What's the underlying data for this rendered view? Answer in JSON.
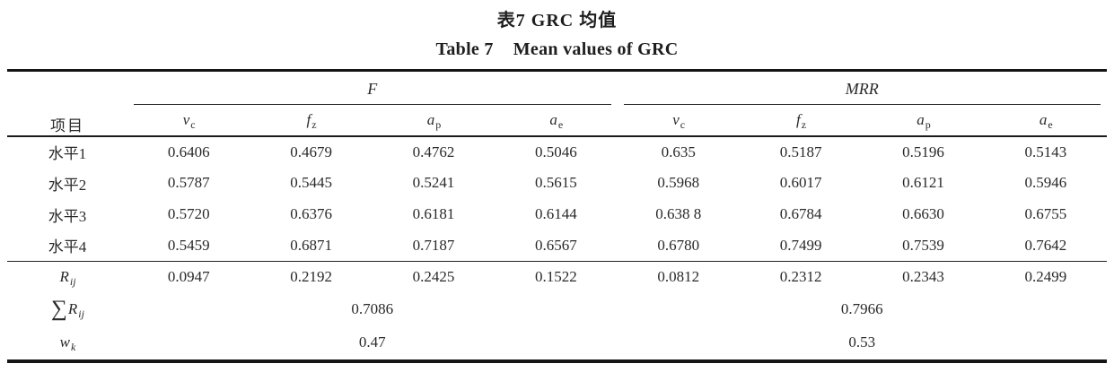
{
  "caption": {
    "zh": "表7 GRC 均值",
    "en_label": "Table 7",
    "en_text": "Mean values of GRC"
  },
  "table": {
    "item_header": "项目",
    "groups": [
      {
        "name": "F",
        "subcols": [
          {
            "base": "v",
            "sub": "c"
          },
          {
            "base": "f",
            "sub": "z"
          },
          {
            "base": "a",
            "sub": "p"
          },
          {
            "base": "a",
            "sub": "e"
          }
        ]
      },
      {
        "name": "MRR",
        "subcols": [
          {
            "base": "v",
            "sub": "c"
          },
          {
            "base": "f",
            "sub": "z"
          },
          {
            "base": "a",
            "sub": "p"
          },
          {
            "base": "a",
            "sub": "e"
          }
        ]
      }
    ],
    "level_rows": [
      {
        "label": "水平1",
        "F": [
          "0.6406",
          "0.4679",
          "0.4762",
          "0.5046"
        ],
        "MRR": [
          "0.635",
          "0.5187",
          "0.5196",
          "0.5143"
        ]
      },
      {
        "label": "水平2",
        "F": [
          "0.5787",
          "0.5445",
          "0.5241",
          "0.5615"
        ],
        "MRR": [
          "0.5968",
          "0.6017",
          "0.6121",
          "0.5946"
        ]
      },
      {
        "label": "水平3",
        "F": [
          "0.5720",
          "0.6376",
          "0.6181",
          "0.6144"
        ],
        "MRR": [
          "0.638 8",
          "0.6784",
          "0.6630",
          "0.6755"
        ]
      },
      {
        "label": "水平4",
        "F": [
          "0.5459",
          "0.6871",
          "0.7187",
          "0.6567"
        ],
        "MRR": [
          "0.6780",
          "0.7499",
          "0.7539",
          "0.7642"
        ]
      }
    ],
    "rij_row": {
      "label_base": "R",
      "label_sub": "ij",
      "F": [
        "0.0947",
        "0.2192",
        "0.2425",
        "0.1522"
      ],
      "MRR": [
        "0.0812",
        "0.2312",
        "0.2343",
        "0.2499"
      ]
    },
    "sum_row": {
      "label_sigma": "∑",
      "label_base": "R",
      "label_sub": "ij",
      "F": "0.7086",
      "MRR": "0.7966"
    },
    "wk_row": {
      "label_base": "w",
      "label_sub": "k",
      "F": "0.47",
      "MRR": "0.53"
    }
  }
}
